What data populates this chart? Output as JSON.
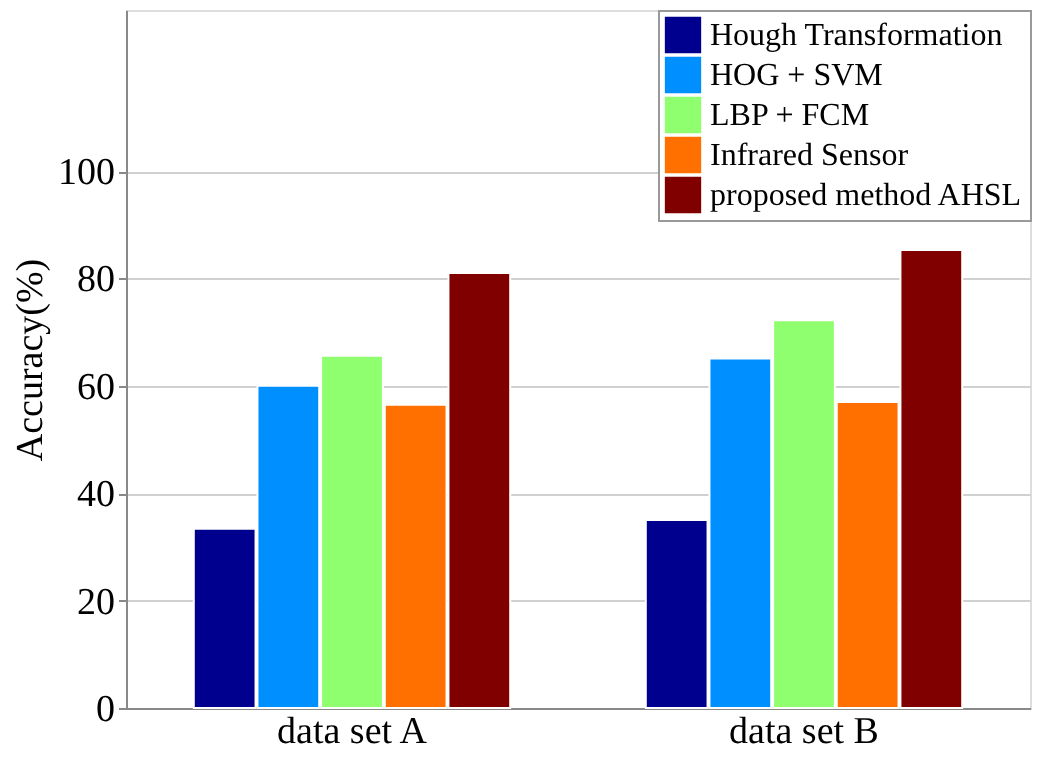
{
  "chart_data": {
    "type": "bar",
    "ylabel": "Accuracy(%)",
    "categories": [
      "data set A",
      "data set B"
    ],
    "series": [
      {
        "name": "Hough Transformation",
        "color": "#00008f",
        "values": [
          33.4,
          35
        ]
      },
      {
        "name": "HOG + SVM",
        "color": "#008fff",
        "values": [
          60,
          65.1
        ]
      },
      {
        "name": "LBP + FCM",
        "color": "#8fff6f",
        "values": [
          65.6,
          72.2
        ]
      },
      {
        "name": "Infrared Sensor",
        "color": "#ff7000",
        "values": [
          56.5,
          57
        ]
      },
      {
        "name": "proposed method AHSL",
        "color": "#800000",
        "values": [
          81,
          85.3
        ]
      }
    ],
    "ylim": [
      0,
      130
    ],
    "yticks": [
      0,
      20,
      40,
      60,
      80,
      100
    ],
    "grid": "y",
    "legend": "top right"
  }
}
